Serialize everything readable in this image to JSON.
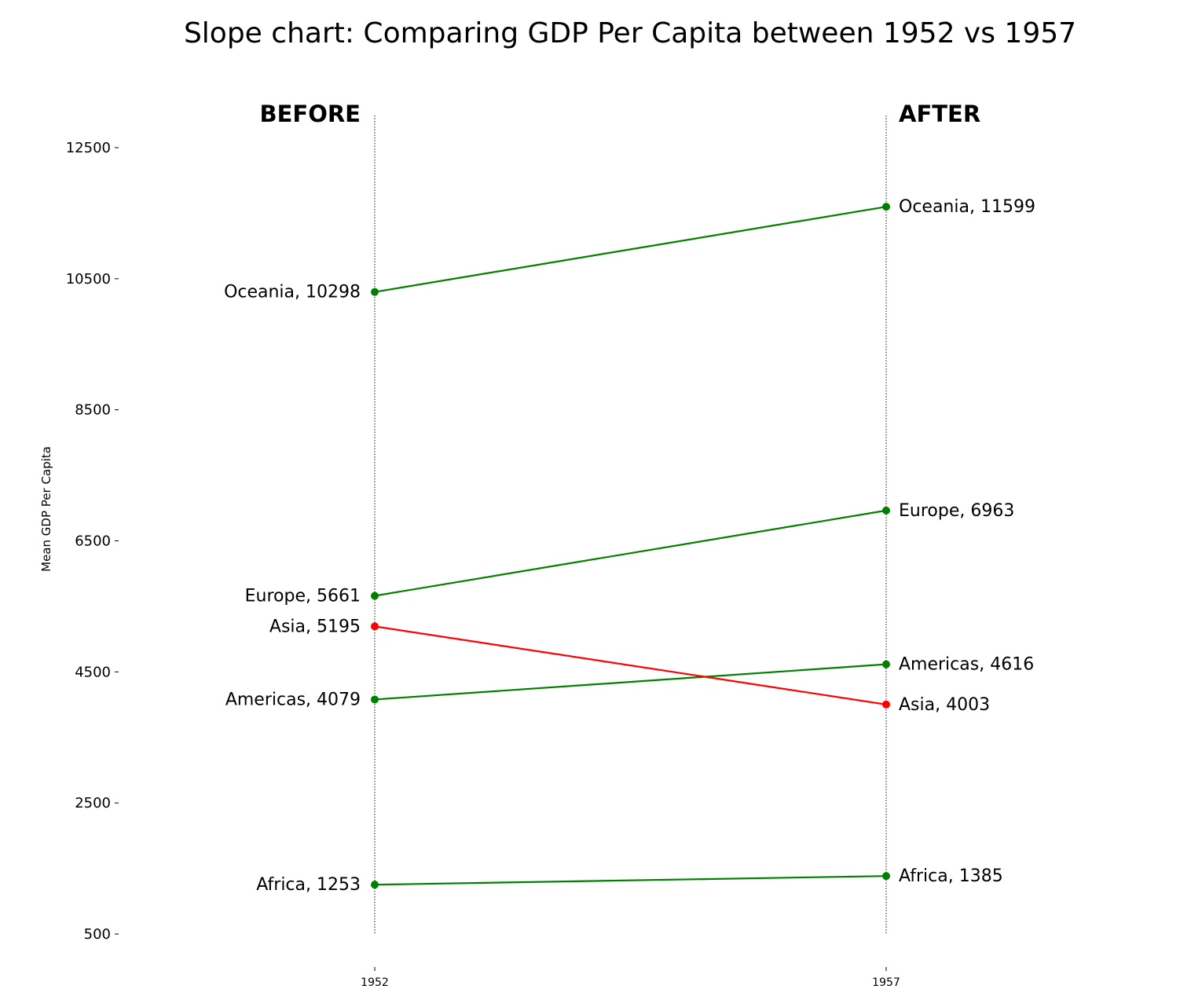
{
  "chart_data": {
    "type": "line",
    "title": "Slope chart: Comparing GDP Per Capita between 1952 vs 1957",
    "ylabel": "Mean GDP Per Capita",
    "xlabel": "",
    "x": [
      "1952",
      "1957"
    ],
    "before_label": "BEFORE",
    "after_label": "AFTER",
    "ylim": [
      500,
      13000
    ],
    "yticks": [
      500,
      2500,
      4500,
      6500,
      8500,
      10500,
      12500
    ],
    "ytick_labels": [
      "500",
      "2500",
      "4500",
      "6500",
      "8500",
      "10500",
      "12500"
    ],
    "grid": false,
    "series": [
      {
        "continent": "Africa",
        "values": [
          1253,
          1385
        ],
        "label_1952": "Africa, 1253",
        "label_1957": "Africa, 1385",
        "color": "#008000"
      },
      {
        "continent": "Americas",
        "values": [
          4079,
          4616
        ],
        "label_1952": "Americas, 4079",
        "label_1957": "Americas, 4616",
        "color": "#008000"
      },
      {
        "continent": "Asia",
        "values": [
          5195,
          4003
        ],
        "label_1952": "Asia, 5195",
        "label_1957": "Asia, 4003",
        "color": "#ff0000"
      },
      {
        "continent": "Europe",
        "values": [
          5661,
          6963
        ],
        "label_1952": "Europe, 5661",
        "label_1957": "Europe, 6963",
        "color": "#008000"
      },
      {
        "continent": "Oceania",
        "values": [
          10298,
          11599
        ],
        "label_1952": "Oceania, 10298",
        "label_1957": "Oceania, 11599",
        "color": "#008000"
      }
    ]
  }
}
